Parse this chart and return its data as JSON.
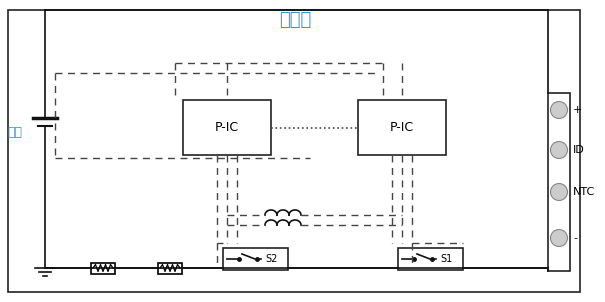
{
  "title": "单电池",
  "label_chip": "电芯",
  "label_pic": "P-IC",
  "label_s1": "S1",
  "label_s2": "S2",
  "label_plus": "+",
  "label_id": "ID",
  "label_ntc": "NTC",
  "label_minus": "-",
  "title_color": "#3399cc",
  "chip_label_color": "#3399cc",
  "bg_color": "#ffffff",
  "border_color": "#222222",
  "solid_line_color": "#111111",
  "dashed_line_color": "#444444",
  "connector_bg": "#cccccc",
  "fig_width": 6.05,
  "fig_height": 3.02,
  "dpi": 100
}
